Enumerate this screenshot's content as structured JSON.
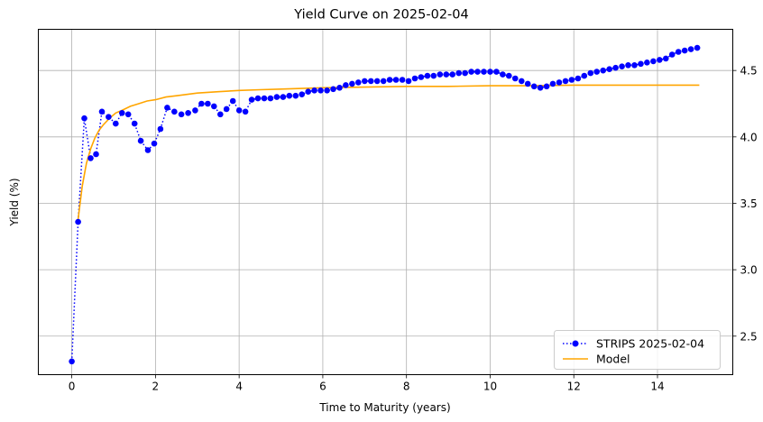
{
  "chart_data": {
    "type": "line",
    "title": "Yield Curve on 2025-02-04",
    "xlabel": "Time to Maturity (years)",
    "ylabel": "Yield (%)",
    "xlim": [
      -0.8,
      15.8
    ],
    "ylim": [
      2.21,
      4.81
    ],
    "x_ticks": [
      "0",
      "2",
      "4",
      "6",
      "8",
      "10",
      "12",
      "14"
    ],
    "y_ticks": [
      "2.5",
      "3.0",
      "3.5",
      "4.0",
      "4.5"
    ],
    "y_axis_side": "right",
    "grid": true,
    "legend_position": "bottom-right",
    "series": [
      {
        "name": "STRIPS 2025-02-04",
        "style": "dotted-markers",
        "color": "#0000ff",
        "x": [
          0.0,
          0.15,
          0.3,
          0.45,
          0.58,
          0.72,
          0.88,
          1.05,
          1.2,
          1.35,
          1.5,
          1.65,
          1.82,
          1.97,
          2.12,
          2.28,
          2.45,
          2.62,
          2.78,
          2.95,
          3.1,
          3.25,
          3.4,
          3.55,
          3.7,
          3.85,
          4.0,
          4.15,
          4.3,
          4.45,
          4.6,
          4.75,
          4.9,
          5.05,
          5.2,
          5.35,
          5.5,
          5.65,
          5.8,
          5.95,
          6.1,
          6.25,
          6.4,
          6.55,
          6.7,
          6.85,
          7.0,
          7.15,
          7.3,
          7.45,
          7.6,
          7.75,
          7.9,
          8.05,
          8.2,
          8.35,
          8.5,
          8.65,
          8.8,
          8.95,
          9.1,
          9.25,
          9.4,
          9.55,
          9.7,
          9.85,
          10.0,
          10.15,
          10.3,
          10.45,
          10.6,
          10.75,
          10.9,
          11.05,
          11.2,
          11.35,
          11.5,
          11.65,
          11.8,
          11.95,
          12.1,
          12.25,
          12.4,
          12.55,
          12.7,
          12.85,
          13.0,
          13.15,
          13.3,
          13.45,
          13.6,
          13.75,
          13.9,
          14.05,
          14.2,
          14.35,
          14.5,
          14.65,
          14.8,
          14.95
        ],
        "y": [
          2.31,
          3.36,
          4.14,
          3.84,
          3.87,
          4.19,
          4.15,
          4.1,
          4.18,
          4.17,
          4.1,
          3.97,
          3.9,
          3.95,
          4.06,
          4.22,
          4.19,
          4.17,
          4.18,
          4.2,
          4.25,
          4.25,
          4.23,
          4.17,
          4.21,
          4.27,
          4.2,
          4.19,
          4.28,
          4.29,
          4.29,
          4.29,
          4.3,
          4.3,
          4.31,
          4.31,
          4.32,
          4.34,
          4.35,
          4.35,
          4.35,
          4.36,
          4.37,
          4.39,
          4.4,
          4.41,
          4.42,
          4.42,
          4.42,
          4.42,
          4.43,
          4.43,
          4.43,
          4.42,
          4.44,
          4.45,
          4.46,
          4.46,
          4.47,
          4.47,
          4.47,
          4.48,
          4.48,
          4.49,
          4.49,
          4.49,
          4.49,
          4.49,
          4.47,
          4.46,
          4.44,
          4.42,
          4.4,
          4.38,
          4.37,
          4.38,
          4.4,
          4.41,
          4.42,
          4.43,
          4.44,
          4.46,
          4.48,
          4.49,
          4.5,
          4.51,
          4.52,
          4.53,
          4.54,
          4.54,
          4.55,
          4.56,
          4.57,
          4.58,
          4.59,
          4.62,
          4.64,
          4.65,
          4.66,
          4.67
        ]
      },
      {
        "name": "Model",
        "style": "line",
        "color": "#ffa500",
        "x": [
          0.15,
          0.25,
          0.35,
          0.45,
          0.55,
          0.65,
          0.75,
          0.9,
          1.05,
          1.2,
          1.4,
          1.6,
          1.8,
          2.0,
          2.25,
          2.5,
          2.75,
          3.0,
          3.5,
          4.0,
          4.5,
          5.0,
          5.5,
          6.0,
          7.0,
          8.0,
          9.0,
          10.0,
          11.0,
          12.0,
          13.0,
          14.0,
          15.0
        ],
        "y": [
          3.38,
          3.63,
          3.8,
          3.91,
          3.99,
          4.05,
          4.09,
          4.14,
          4.18,
          4.2,
          4.23,
          4.25,
          4.27,
          4.28,
          4.3,
          4.31,
          4.32,
          4.33,
          4.34,
          4.35,
          4.355,
          4.36,
          4.365,
          4.37,
          4.375,
          4.38,
          4.38,
          4.385,
          4.385,
          4.39,
          4.39,
          4.39,
          4.39
        ]
      }
    ]
  }
}
